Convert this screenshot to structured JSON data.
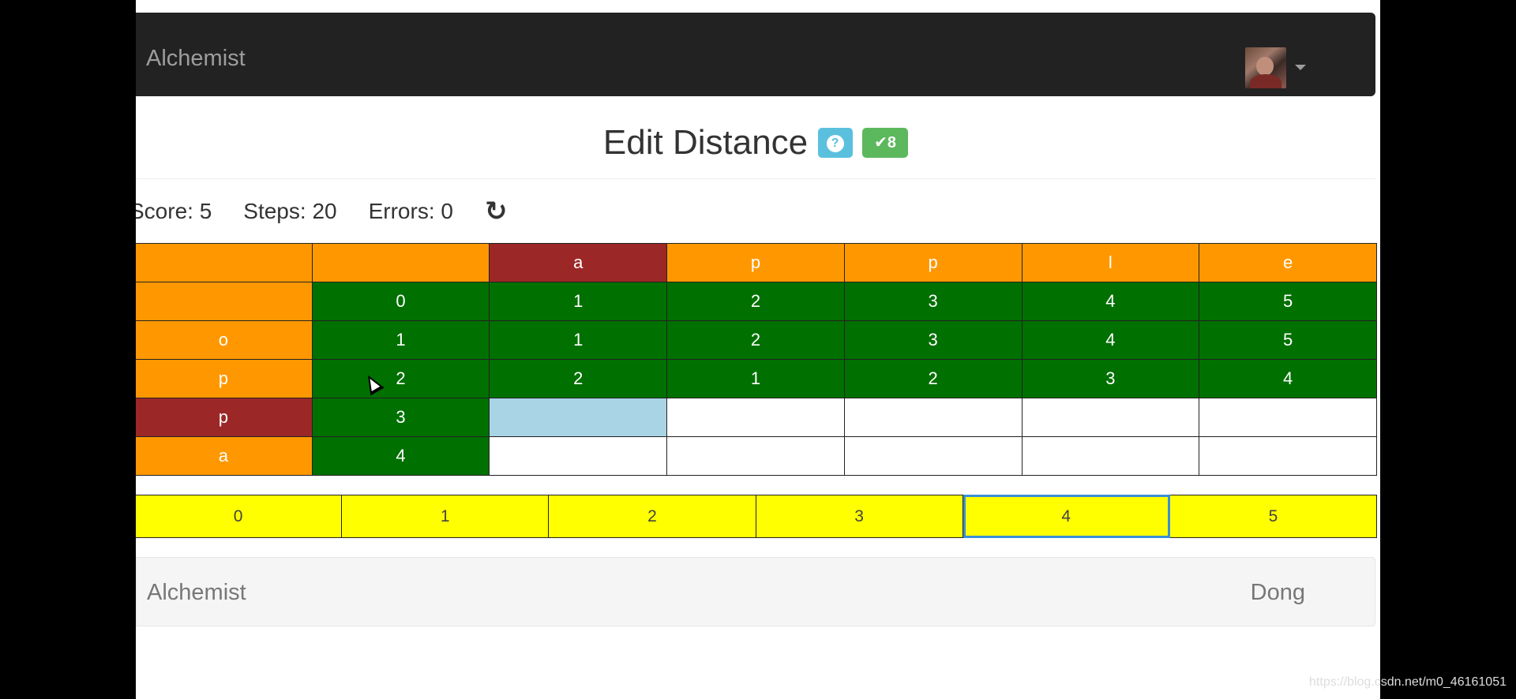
{
  "navbar": {
    "brand": "Alchemist"
  },
  "title": {
    "text": "Edit Distance",
    "help_badge": "?",
    "solved_badge": "✔8"
  },
  "stats": {
    "score": "Score: 5",
    "steps": "Steps: 20",
    "errors": "Errors: 0",
    "refresh_icon": "↻"
  },
  "table": {
    "header_row": [
      "",
      "",
      "a",
      "p",
      "p",
      "l",
      "e"
    ],
    "rows": [
      [
        "",
        "0",
        "1",
        "2",
        "3",
        "4",
        "5"
      ],
      [
        "o",
        "1",
        "1",
        "2",
        "3",
        "4",
        "5"
      ],
      [
        "p",
        "2",
        "2",
        "1",
        "2",
        "3",
        "4"
      ],
      [
        "p",
        "3",
        "",
        "",
        "",
        "",
        ""
      ],
      [
        "a",
        "4",
        "",
        "",
        "",
        "",
        ""
      ]
    ]
  },
  "choices": [
    "0",
    "1",
    "2",
    "3",
    "4",
    "5"
  ],
  "footer": {
    "brand": "Alchemist",
    "user": "Dong"
  },
  "watermark": "https://blog.csdn.net/m0_46161051",
  "colors": {
    "header": "#ff9800",
    "highlight": "#9c2727",
    "filled": "#007000",
    "selected": "#a8d4e6",
    "choice": "#ffff00"
  }
}
